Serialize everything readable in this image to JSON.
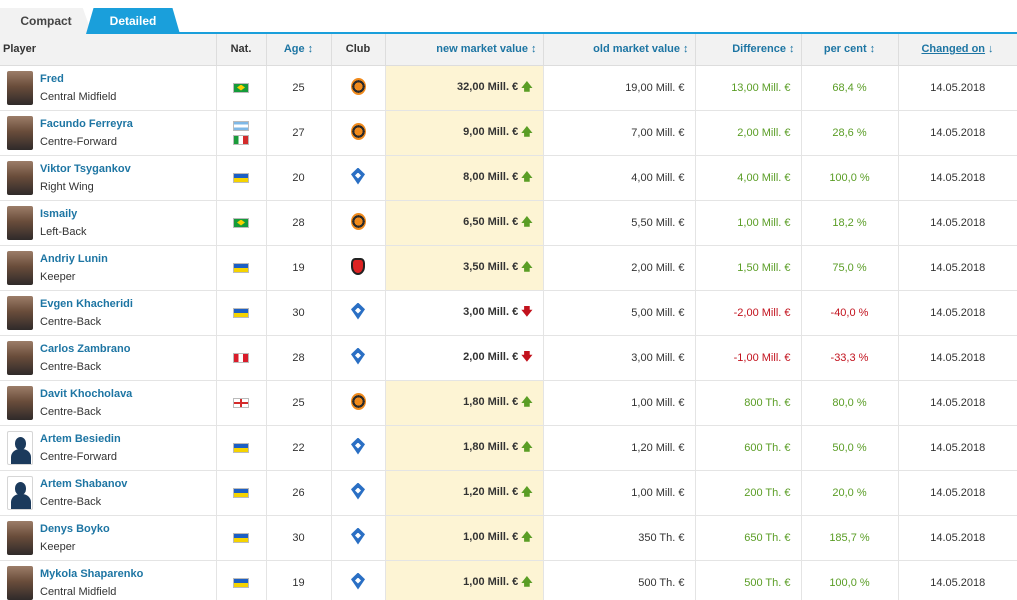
{
  "tabs": [
    {
      "label": "Compact",
      "active": false
    },
    {
      "label": "Detailed",
      "active": true
    }
  ],
  "headers": {
    "player": "Player",
    "nat": "Nat.",
    "age": "Age",
    "club": "Club",
    "new_mv": "new market value",
    "old_mv": "old market value",
    "difference": "Difference",
    "per_cent": "per cent",
    "changed_on": "Changed on"
  },
  "sort_icons": {
    "sortable": "↕",
    "sorted_desc": "↓"
  },
  "colors": {
    "accent": "#1a9fdb",
    "link": "#1d75a3",
    "positive": "#5a9d25",
    "negative": "#c2121d",
    "highlight": "#fdf4d4"
  },
  "rows": [
    {
      "name": "Fred",
      "position": "Central Midfield",
      "flags": [
        "brazil"
      ],
      "age": "25",
      "club": "shakhtar",
      "new_mv": "32,00 Mill. €",
      "trend": "up",
      "old_mv": "19,00 Mill. €",
      "diff": "13,00 Mill. €",
      "pct": "68,4 %",
      "date": "14.05.2018",
      "avatar": "photo",
      "highlight": true
    },
    {
      "name": "Facundo Ferreyra",
      "position": "Centre-Forward",
      "flags": [
        "argentina",
        "italy"
      ],
      "age": "27",
      "club": "shakhtar",
      "new_mv": "9,00 Mill. €",
      "trend": "up",
      "old_mv": "7,00 Mill. €",
      "diff": "2,00 Mill. €",
      "pct": "28,6 %",
      "date": "14.05.2018",
      "avatar": "photo",
      "highlight": true
    },
    {
      "name": "Viktor Tsygankov",
      "position": "Right Wing",
      "flags": [
        "ukraine"
      ],
      "age": "20",
      "club": "dynamo",
      "new_mv": "8,00 Mill. €",
      "trend": "up",
      "old_mv": "4,00 Mill. €",
      "diff": "4,00 Mill. €",
      "pct": "100,0 %",
      "date": "14.05.2018",
      "avatar": "photo",
      "highlight": true
    },
    {
      "name": "Ismaily",
      "position": "Left-Back",
      "flags": [
        "brazil"
      ],
      "age": "28",
      "club": "shakhtar",
      "new_mv": "6,50 Mill. €",
      "trend": "up",
      "old_mv": "5,50 Mill. €",
      "diff": "1,00 Mill. €",
      "pct": "18,2 %",
      "date": "14.05.2018",
      "avatar": "photo",
      "highlight": true
    },
    {
      "name": "Andriy Lunin",
      "position": "Keeper",
      "flags": [
        "ukraine"
      ],
      "age": "19",
      "club": "zarya",
      "new_mv": "3,50 Mill. €",
      "trend": "up",
      "old_mv": "2,00 Mill. €",
      "diff": "1,50 Mill. €",
      "pct": "75,0 %",
      "date": "14.05.2018",
      "avatar": "photo",
      "highlight": true
    },
    {
      "name": "Evgen Khacheridi",
      "position": "Centre-Back",
      "flags": [
        "ukraine"
      ],
      "age": "30",
      "club": "dynamo",
      "new_mv": "3,00 Mill. €",
      "trend": "down",
      "old_mv": "5,00 Mill. €",
      "diff": "-2,00 Mill. €",
      "pct": "-40,0 %",
      "date": "14.05.2018",
      "avatar": "photo",
      "highlight": false
    },
    {
      "name": "Carlos Zambrano",
      "position": "Centre-Back",
      "flags": [
        "peru"
      ],
      "age": "28",
      "club": "dynamo",
      "new_mv": "2,00 Mill. €",
      "trend": "down",
      "old_mv": "3,00 Mill. €",
      "diff": "-1,00 Mill. €",
      "pct": "-33,3 %",
      "date": "14.05.2018",
      "avatar": "photo",
      "highlight": false
    },
    {
      "name": "Davit Khocholava",
      "position": "Centre-Back",
      "flags": [
        "georgia"
      ],
      "age": "25",
      "club": "shakhtar",
      "new_mv": "1,80 Mill. €",
      "trend": "up",
      "old_mv": "1,00 Mill. €",
      "diff": "800 Th. €",
      "pct": "80,0 %",
      "date": "14.05.2018",
      "avatar": "photo",
      "highlight": true
    },
    {
      "name": "Artem Besiedin",
      "position": "Centre-Forward",
      "flags": [
        "ukraine"
      ],
      "age": "22",
      "club": "dynamo",
      "new_mv": "1,80 Mill. €",
      "trend": "up",
      "old_mv": "1,20 Mill. €",
      "diff": "600 Th. €",
      "pct": "50,0 %",
      "date": "14.05.2018",
      "avatar": "silhouette",
      "highlight": true
    },
    {
      "name": "Artem Shabanov",
      "position": "Centre-Back",
      "flags": [
        "ukraine"
      ],
      "age": "26",
      "club": "dynamo",
      "new_mv": "1,20 Mill. €",
      "trend": "up",
      "old_mv": "1,00 Mill. €",
      "diff": "200 Th. €",
      "pct": "20,0 %",
      "date": "14.05.2018",
      "avatar": "silhouette",
      "highlight": true
    },
    {
      "name": "Denys Boyko",
      "position": "Keeper",
      "flags": [
        "ukraine"
      ],
      "age": "30",
      "club": "dynamo",
      "new_mv": "1,00 Mill. €",
      "trend": "up",
      "old_mv": "350 Th. €",
      "diff": "650 Th. €",
      "pct": "185,7 %",
      "date": "14.05.2018",
      "avatar": "photo",
      "highlight": true
    },
    {
      "name": "Mykola Shaparenko",
      "position": "Central Midfield",
      "flags": [
        "ukraine"
      ],
      "age": "19",
      "club": "dynamo",
      "new_mv": "1,00 Mill. €",
      "trend": "up",
      "old_mv": "500 Th. €",
      "diff": "500 Th. €",
      "pct": "100,0 %",
      "date": "14.05.2018",
      "avatar": "photo",
      "highlight": true
    }
  ]
}
